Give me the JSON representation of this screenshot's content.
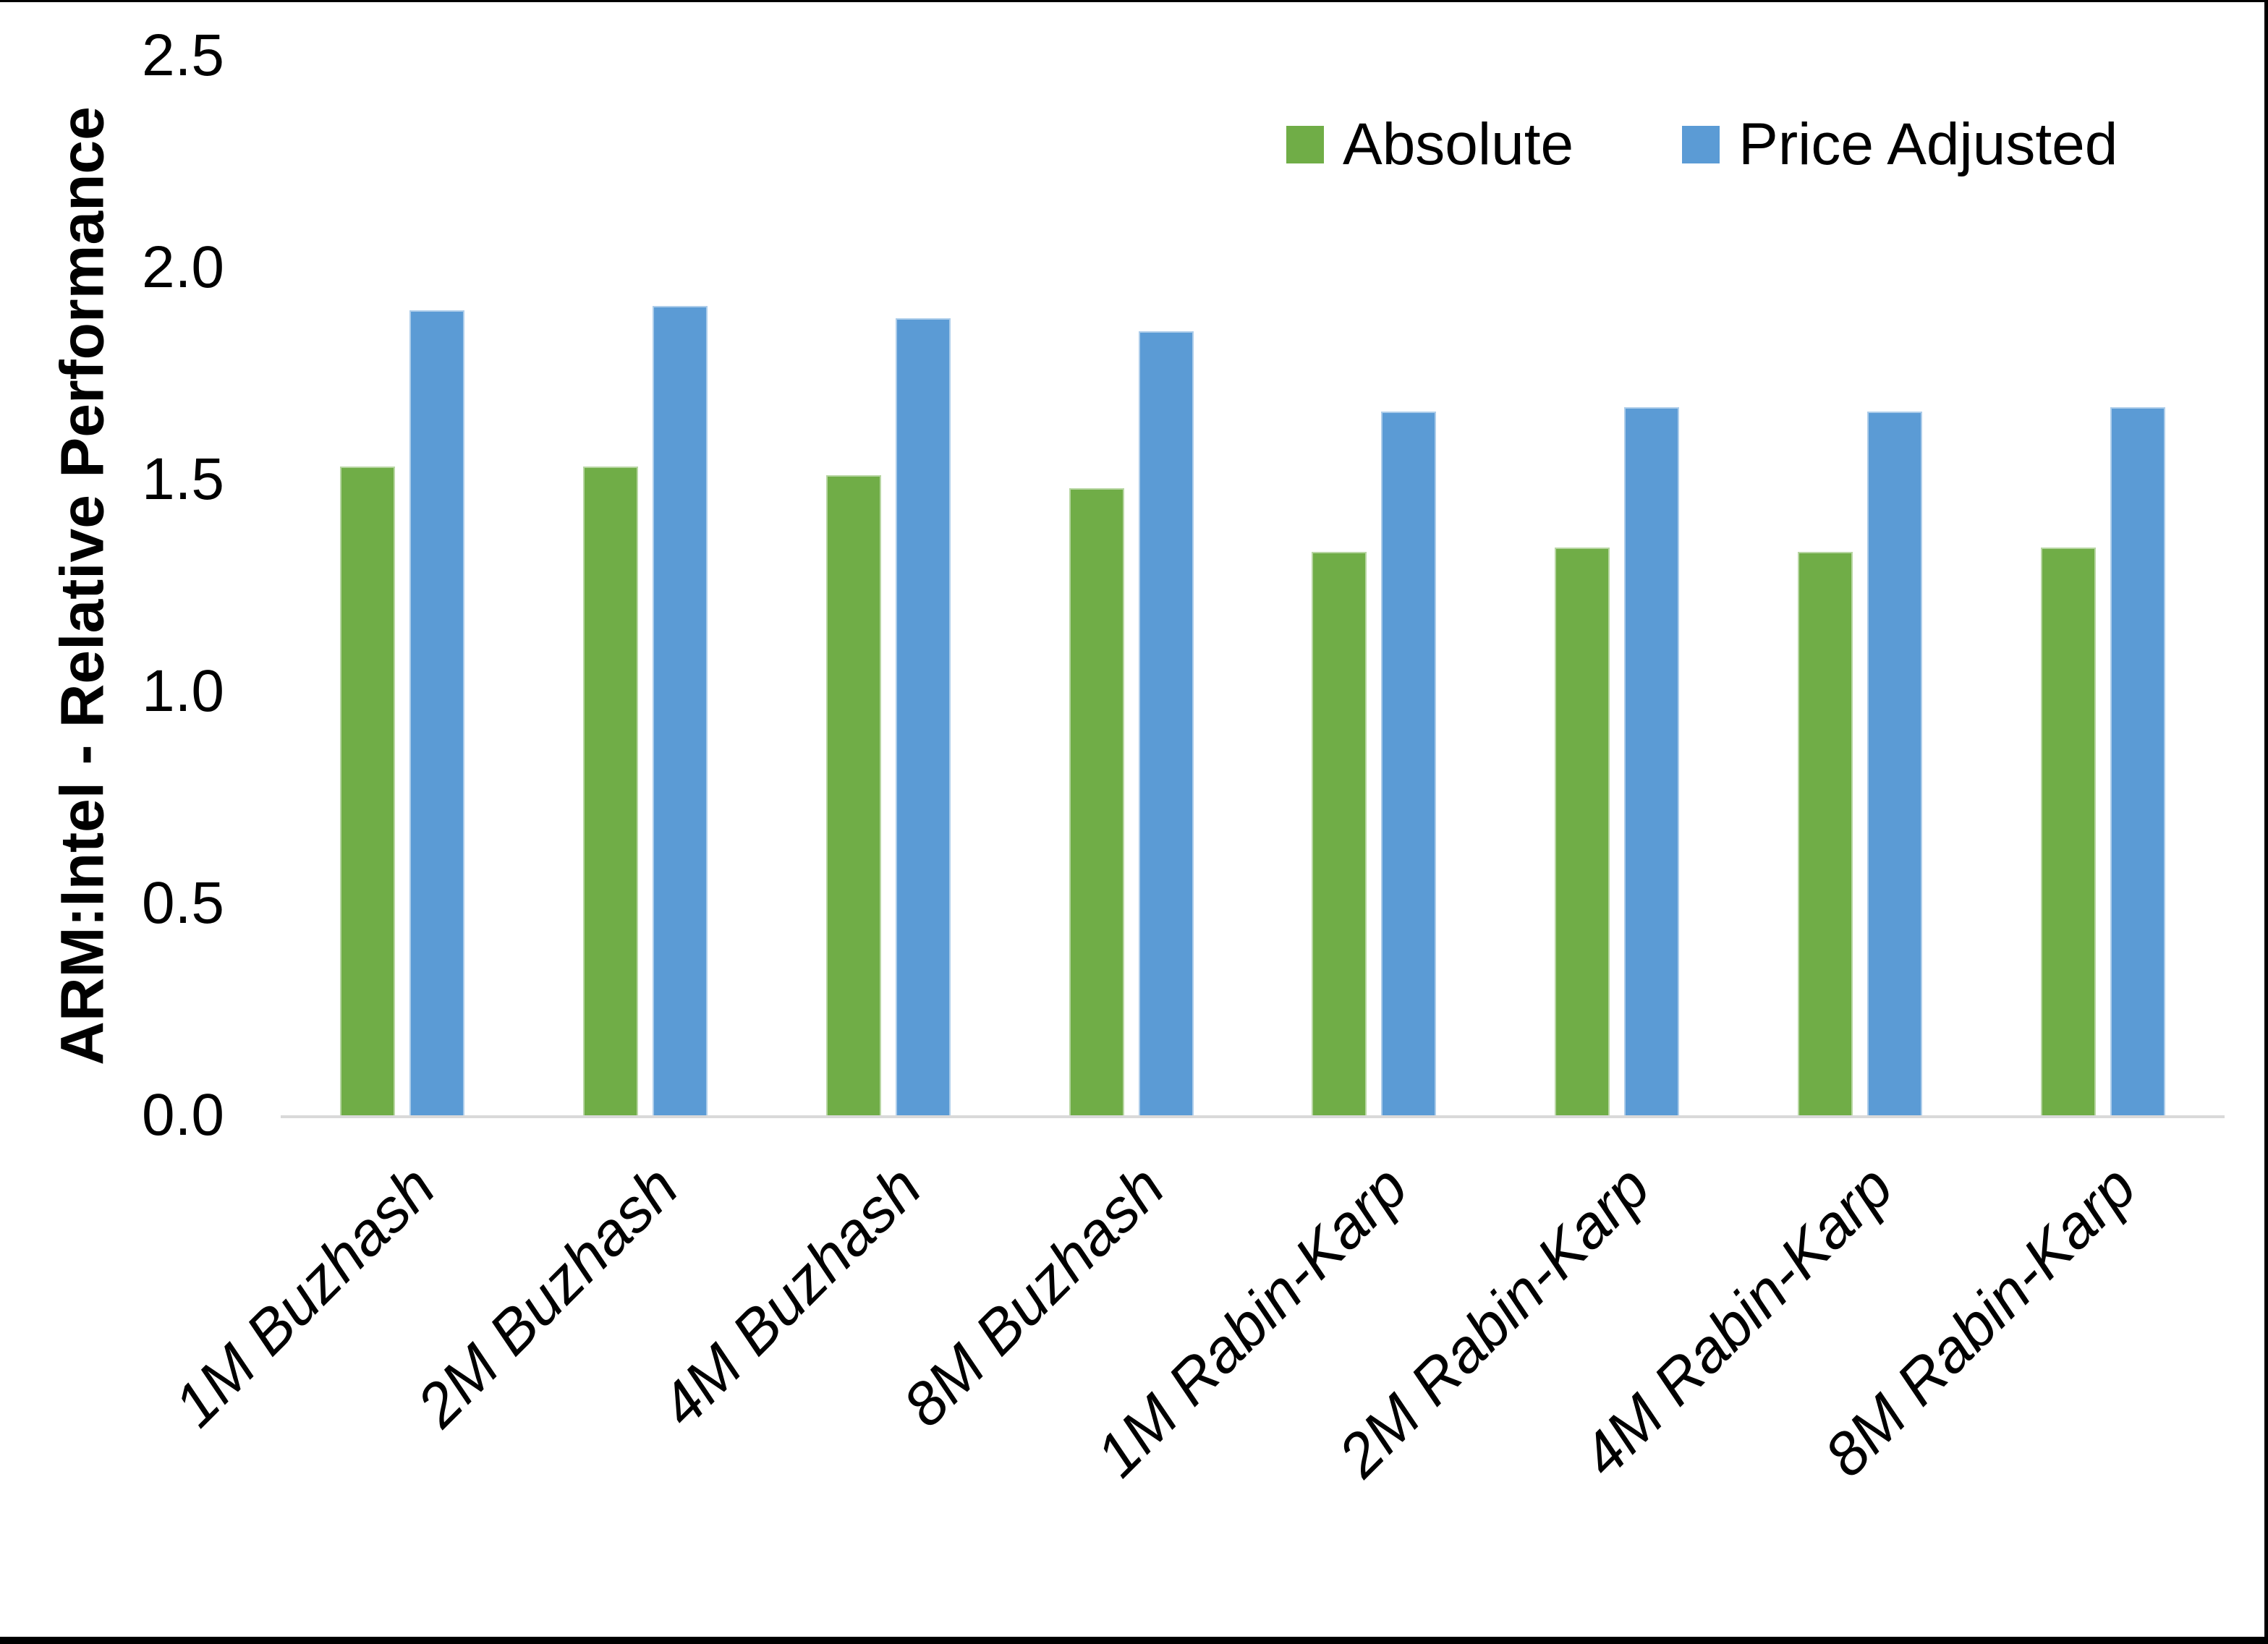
{
  "figure": {
    "background": "#FFFFFF",
    "border_color": "#000000"
  },
  "chart_data": {
    "type": "bar",
    "title": "",
    "xlabel": "",
    "ylabel": "ARM:Intel - Relative Performance",
    "ylim": [
      0,
      2.5
    ],
    "ytick_labels": [
      "0.0",
      "0.5",
      "1.0",
      "1.5",
      "2.0",
      "2.5"
    ],
    "grid": false,
    "axis_line_color": "#D9D9D9",
    "legend_position": "top-right",
    "categories": [
      "1M Buzhash",
      "2M Buzhash",
      "4M Buzhash",
      "8M Buzhash",
      "1M Rabin-Karp",
      "2M Rabin-Karp",
      "4M Rabin-Karp",
      "8M Rabin-Karp"
    ],
    "series": [
      {
        "name": "Absolute",
        "color": "#70AD47",
        "values": [
          1.53,
          1.53,
          1.51,
          1.48,
          1.33,
          1.34,
          1.33,
          1.34
        ]
      },
      {
        "name": "Price Adjusted",
        "color": "#5B9BD5",
        "values": [
          1.9,
          1.91,
          1.88,
          1.85,
          1.66,
          1.67,
          1.66,
          1.67
        ]
      }
    ]
  }
}
